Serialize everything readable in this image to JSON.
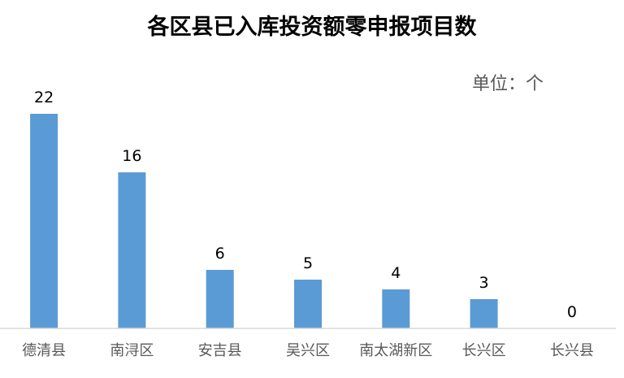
{
  "chart_data": {
    "type": "bar",
    "title": "各区县已入库投资额零申报项目数",
    "unit": "单位：个",
    "categories": [
      "德清县",
      "南浔区",
      "安吉县",
      "吴兴区",
      "南太湖新区",
      "长兴区",
      "长兴县"
    ],
    "values": [
      22,
      16,
      6,
      5,
      4,
      3,
      0
    ],
    "ylim": [
      0,
      22
    ],
    "grid": false,
    "legend": "none",
    "bar_color": "#5b9bd5",
    "axis_color": "#d9d9d9"
  }
}
